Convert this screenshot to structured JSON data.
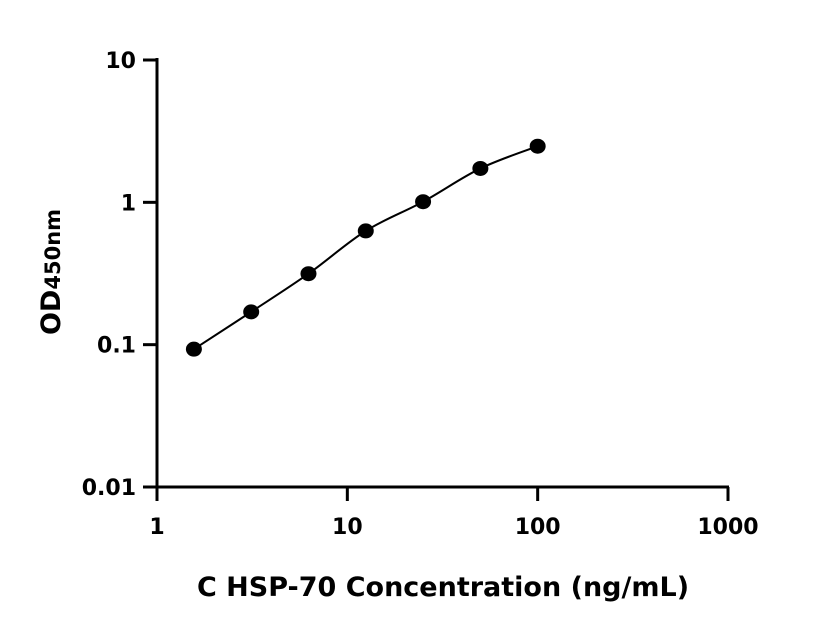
{
  "chart_data": {
    "type": "scatter",
    "title": "",
    "xlabel": "C HSP-70 Concentration (ng/mL)",
    "ylabel": "OD",
    "ylabel_sub": "450nm",
    "x_scale": "log",
    "y_scale": "log",
    "xlim": [
      1,
      1000
    ],
    "ylim": [
      0.01,
      10
    ],
    "x_ticks": [
      "1",
      "10",
      "100",
      "1000"
    ],
    "y_ticks": [
      "0.01",
      "0.1",
      "1",
      "10"
    ],
    "grid": false,
    "fit_line": true,
    "series": [
      {
        "x": [
          1.5625,
          3.125,
          6.25,
          12.5,
          25,
          50,
          100
        ],
        "y": [
          0.093,
          0.17,
          0.315,
          0.63,
          1.01,
          1.73,
          2.48
        ],
        "color": "#000000"
      }
    ]
  }
}
